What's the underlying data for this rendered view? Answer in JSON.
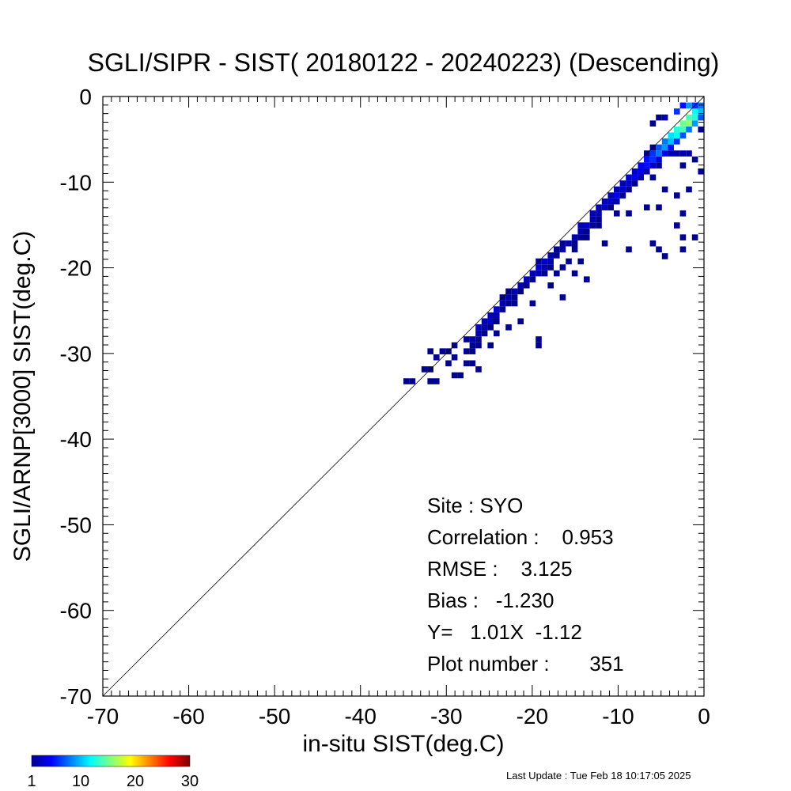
{
  "chart_data": {
    "type": "heatmap",
    "title": "SGLI/SIPR - SIST( 20180122 - 20240223) (Descending)",
    "xlabel": "in-situ SIST(deg.C)",
    "ylabel": "SGLI/ARNP[3000]     SIST(deg.C)",
    "xlim": [
      -70,
      0
    ],
    "ylim": [
      -70,
      0
    ],
    "x_ticks": [
      "-70",
      "-60",
      "-50",
      "-40",
      "-30",
      "-20",
      "-10",
      "0"
    ],
    "y_ticks": [
      "0",
      "-10",
      "-20",
      "-30",
      "-40",
      "-50",
      "-60",
      "-70"
    ],
    "reference_line": "1:1",
    "colorbar": {
      "range": [
        1,
        30
      ],
      "tick_labels": [
        "1",
        "10",
        "20",
        "30"
      ],
      "colors": [
        "#00008f",
        "#0000ff",
        "#0080ff",
        "#00ffff",
        "#80ff80",
        "#ffff00",
        "#ff8000",
        "#ff0000",
        "#800000"
      ]
    },
    "cell_size": 0.7,
    "cells": [
      [
        -35.0,
        -33.6,
        1
      ],
      [
        -34.3,
        -33.6,
        1
      ],
      [
        -32.2,
        -33.6,
        1
      ],
      [
        -31.5,
        -33.6,
        1
      ],
      [
        -32.9,
        -32.2,
        1
      ],
      [
        -32.2,
        -32.2,
        1
      ],
      [
        -29.4,
        -32.9,
        1
      ],
      [
        -28.7,
        -32.9,
        1
      ],
      [
        -30.1,
        -31.5,
        1
      ],
      [
        -31.5,
        -30.8,
        1
      ],
      [
        -29.4,
        -30.8,
        1
      ],
      [
        -28.0,
        -31.5,
        1
      ],
      [
        -27.3,
        -31.5,
        1
      ],
      [
        -26.6,
        -32.2,
        1
      ],
      [
        -32.2,
        -30.1,
        1
      ],
      [
        -30.8,
        -30.1,
        1
      ],
      [
        -30.1,
        -30.1,
        1
      ],
      [
        -29.4,
        -29.4,
        1
      ],
      [
        -28.0,
        -30.1,
        1
      ],
      [
        -27.3,
        -30.1,
        1
      ],
      [
        -27.3,
        -29.4,
        1
      ],
      [
        -28.0,
        -28.7,
        1
      ],
      [
        -27.3,
        -28.7,
        2
      ],
      [
        -26.6,
        -28.7,
        1
      ],
      [
        -26.6,
        -28.0,
        2
      ],
      [
        -25.9,
        -28.0,
        1
      ],
      [
        -26.6,
        -27.3,
        2
      ],
      [
        -25.9,
        -27.3,
        2
      ],
      [
        -25.2,
        -27.3,
        1
      ],
      [
        -25.9,
        -26.6,
        2
      ],
      [
        -25.2,
        -26.6,
        3
      ],
      [
        -24.5,
        -26.6,
        1
      ],
      [
        -25.2,
        -25.9,
        2
      ],
      [
        -24.5,
        -25.9,
        2
      ],
      [
        -24.5,
        -25.2,
        3
      ],
      [
        -23.8,
        -25.2,
        1
      ],
      [
        -23.8,
        -24.5,
        2
      ],
      [
        -23.1,
        -24.5,
        1
      ],
      [
        -22.4,
        -24.5,
        1
      ],
      [
        -23.8,
        -23.8,
        1
      ],
      [
        -23.1,
        -23.8,
        2
      ],
      [
        -22.4,
        -23.8,
        1
      ],
      [
        -23.1,
        -23.1,
        1
      ],
      [
        -22.4,
        -23.1,
        2
      ],
      [
        -21.7,
        -23.1,
        1
      ],
      [
        -21.7,
        -22.4,
        2
      ],
      [
        -21.0,
        -22.4,
        1
      ],
      [
        -21.0,
        -21.7,
        2
      ],
      [
        -20.3,
        -21.7,
        1
      ],
      [
        -20.3,
        -21.0,
        2
      ],
      [
        -19.6,
        -21.0,
        2
      ],
      [
        -19.6,
        -20.3,
        3
      ],
      [
        -18.9,
        -20.3,
        2
      ],
      [
        -18.2,
        -20.3,
        1
      ],
      [
        -19.6,
        -19.6,
        2
      ],
      [
        -18.9,
        -19.6,
        3
      ],
      [
        -18.2,
        -19.6,
        2
      ],
      [
        -18.2,
        -18.9,
        2
      ],
      [
        -17.5,
        -18.9,
        1
      ],
      [
        -17.5,
        -18.2,
        1
      ],
      [
        -16.8,
        -18.2,
        2
      ],
      [
        -16.8,
        -17.5,
        1
      ],
      [
        -16.1,
        -17.5,
        2
      ],
      [
        -15.4,
        -17.5,
        1
      ],
      [
        -15.4,
        -16.8,
        2
      ],
      [
        -14.7,
        -16.8,
        1
      ],
      [
        -14.7,
        -16.1,
        2
      ],
      [
        -14.0,
        -16.1,
        1
      ],
      [
        -14.7,
        -15.4,
        2
      ],
      [
        -14.0,
        -15.4,
        3
      ],
      [
        -13.3,
        -15.4,
        1
      ],
      [
        -13.3,
        -14.7,
        2
      ],
      [
        -12.6,
        -14.7,
        1
      ],
      [
        -13.3,
        -14.0,
        2
      ],
      [
        -12.6,
        -14.0,
        2
      ],
      [
        -12.6,
        -13.3,
        2
      ],
      [
        -11.9,
        -13.3,
        3
      ],
      [
        -11.2,
        -13.3,
        1
      ],
      [
        -11.9,
        -12.6,
        2
      ],
      [
        -11.2,
        -12.6,
        3
      ],
      [
        -10.5,
        -12.6,
        2
      ],
      [
        -11.2,
        -11.9,
        2
      ],
      [
        -10.5,
        -11.9,
        4
      ],
      [
        -9.8,
        -11.9,
        1
      ],
      [
        -10.5,
        -11.2,
        2
      ],
      [
        -9.8,
        -11.2,
        3
      ],
      [
        -9.1,
        -11.2,
        1
      ],
      [
        -9.8,
        -10.5,
        2
      ],
      [
        -9.1,
        -10.5,
        3
      ],
      [
        -8.4,
        -10.5,
        1
      ],
      [
        -9.1,
        -9.8,
        3
      ],
      [
        -8.4,
        -9.8,
        4
      ],
      [
        -7.7,
        -9.8,
        2
      ],
      [
        -8.4,
        -9.1,
        3
      ],
      [
        -7.7,
        -9.1,
        4
      ],
      [
        -7.0,
        -9.1,
        2
      ],
      [
        -7.7,
        -8.4,
        4
      ],
      [
        -7.0,
        -8.4,
        5
      ],
      [
        -6.3,
        -8.4,
        3
      ],
      [
        -7.0,
        -7.7,
        5
      ],
      [
        -6.3,
        -7.7,
        6
      ],
      [
        -5.6,
        -7.7,
        3
      ],
      [
        -6.3,
        -7.0,
        6
      ],
      [
        -5.6,
        -7.0,
        8
      ],
      [
        -4.9,
        -7.0,
        4
      ],
      [
        -5.6,
        -6.3,
        7
      ],
      [
        -4.9,
        -6.3,
        9
      ],
      [
        -4.2,
        -6.3,
        5
      ],
      [
        -4.9,
        -5.6,
        8
      ],
      [
        -4.2,
        -5.6,
        10
      ],
      [
        -3.5,
        -5.6,
        6
      ],
      [
        -4.2,
        -4.9,
        11
      ],
      [
        -3.5,
        -4.9,
        12
      ],
      [
        -2.8,
        -4.9,
        7
      ],
      [
        -3.5,
        -4.2,
        13
      ],
      [
        -2.8,
        -4.2,
        14
      ],
      [
        -2.1,
        -4.2,
        8
      ],
      [
        -2.8,
        -3.5,
        15
      ],
      [
        -2.1,
        -3.5,
        16
      ],
      [
        -1.4,
        -3.5,
        9
      ],
      [
        -2.1,
        -2.8,
        14
      ],
      [
        -1.4,
        -2.8,
        13
      ],
      [
        -0.7,
        -2.8,
        7
      ],
      [
        -1.4,
        -2.1,
        12
      ],
      [
        -0.7,
        -2.1,
        10
      ],
      [
        -0.7,
        -1.4,
        8
      ],
      [
        -2.8,
        -1.4,
        5
      ],
      [
        -3.5,
        -2.1,
        6
      ],
      [
        -2.1,
        -1.4,
        9
      ],
      [
        -1.4,
        -1.4,
        6
      ],
      [
        -4.9,
        -2.8,
        2
      ],
      [
        -6.3,
        -3.5,
        1
      ],
      [
        -7.0,
        -7.0,
        1
      ],
      [
        -6.3,
        -6.3,
        1
      ],
      [
        -5.6,
        -2.8,
        1
      ],
      [
        -3.5,
        -7.0,
        2
      ],
      [
        -4.2,
        -7.0,
        2
      ],
      [
        -2.8,
        -7.0,
        2
      ],
      [
        -2.1,
        -7.0,
        2
      ],
      [
        -6.3,
        -9.8,
        1
      ],
      [
        -5.6,
        -8.4,
        1
      ],
      [
        -2.8,
        -8.4,
        1
      ],
      [
        -0.7,
        -9.1,
        1
      ],
      [
        -1.4,
        -7.7,
        1
      ],
      [
        -0.7,
        -4.2,
        1
      ],
      [
        -2.1,
        -11.2,
        1
      ],
      [
        -3.5,
        -11.9,
        1
      ],
      [
        -4.9,
        -11.2,
        1
      ],
      [
        -2.8,
        -14.0,
        1
      ],
      [
        -5.6,
        -13.3,
        1
      ],
      [
        -7.0,
        -13.3,
        1
      ],
      [
        -9.1,
        -14.0,
        1
      ],
      [
        -10.5,
        -14.0,
        1
      ],
      [
        -12.6,
        -15.4,
        1
      ],
      [
        -14.0,
        -16.8,
        1
      ],
      [
        -11.9,
        -17.5,
        1
      ],
      [
        -15.4,
        -18.2,
        1
      ],
      [
        -16.1,
        -19.6,
        1
      ],
      [
        -14.7,
        -19.6,
        1
      ],
      [
        -16.8,
        -20.3,
        1
      ],
      [
        -17.5,
        -21.0,
        1
      ],
      [
        -18.9,
        -21.0,
        1
      ],
      [
        -15.4,
        -21.0,
        1
      ],
      [
        -14.0,
        -21.7,
        1
      ],
      [
        -9.1,
        -18.2,
        1
      ],
      [
        -2.8,
        -16.8,
        1
      ],
      [
        -1.4,
        -16.8,
        1
      ],
      [
        -5.6,
        -18.2,
        1
      ],
      [
        -3.5,
        -15.4,
        1
      ],
      [
        -4.9,
        -19.0,
        1
      ],
      [
        -2.8,
        -18.2,
        1
      ],
      [
        -6.3,
        -17.5,
        1
      ],
      [
        -18.2,
        -22.4,
        1
      ],
      [
        -16.8,
        -23.8,
        1
      ],
      [
        -20.3,
        -24.5,
        1
      ],
      [
        -24.5,
        -28.0,
        1
      ],
      [
        -23.1,
        -27.3,
        1
      ],
      [
        -25.2,
        -29.4,
        1
      ],
      [
        -21.7,
        -26.6,
        1
      ],
      [
        -19.6,
        -28.7,
        1
      ],
      [
        -19.6,
        -29.4,
        1
      ],
      [
        -26.6,
        -29.4,
        1
      ]
    ],
    "stats": {
      "site": "Site : SYO",
      "correlation": "Correlation :    0.953",
      "rmse": "RMSE :    3.125",
      "bias": "Bias :   -1.230",
      "fit": "Y=   1.01X  -1.12",
      "plot_number": "Plot number :       351"
    },
    "last_update": "Last Update : Tue Feb 18 10:17:05 2025"
  }
}
